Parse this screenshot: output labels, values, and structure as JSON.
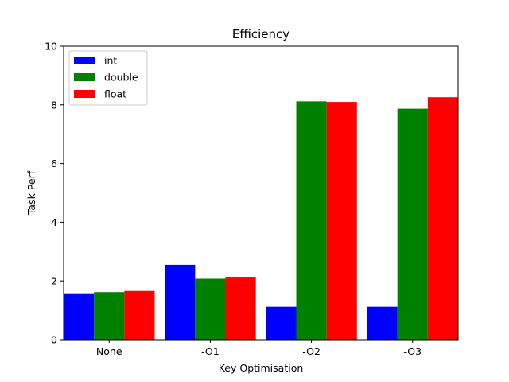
{
  "chart_data": {
    "type": "bar",
    "title": "Efficiency",
    "xlabel": "Key Optimisation",
    "ylabel": "Task Perf",
    "categories": [
      "None",
      "-O1",
      "-O2",
      "-O3"
    ],
    "series": [
      {
        "name": "int",
        "color": "#0000ff",
        "values": [
          1.58,
          2.55,
          1.12,
          1.12
        ]
      },
      {
        "name": "double",
        "color": "#008000",
        "values": [
          1.62,
          2.1,
          8.12,
          7.87
        ]
      },
      {
        "name": "float",
        "color": "#ff0000",
        "values": [
          1.66,
          2.14,
          8.1,
          8.26
        ]
      }
    ],
    "ylim": [
      0,
      10
    ],
    "yticks": [
      0,
      2,
      4,
      6,
      8,
      10
    ],
    "grid": false,
    "legend_position": "top-left"
  }
}
